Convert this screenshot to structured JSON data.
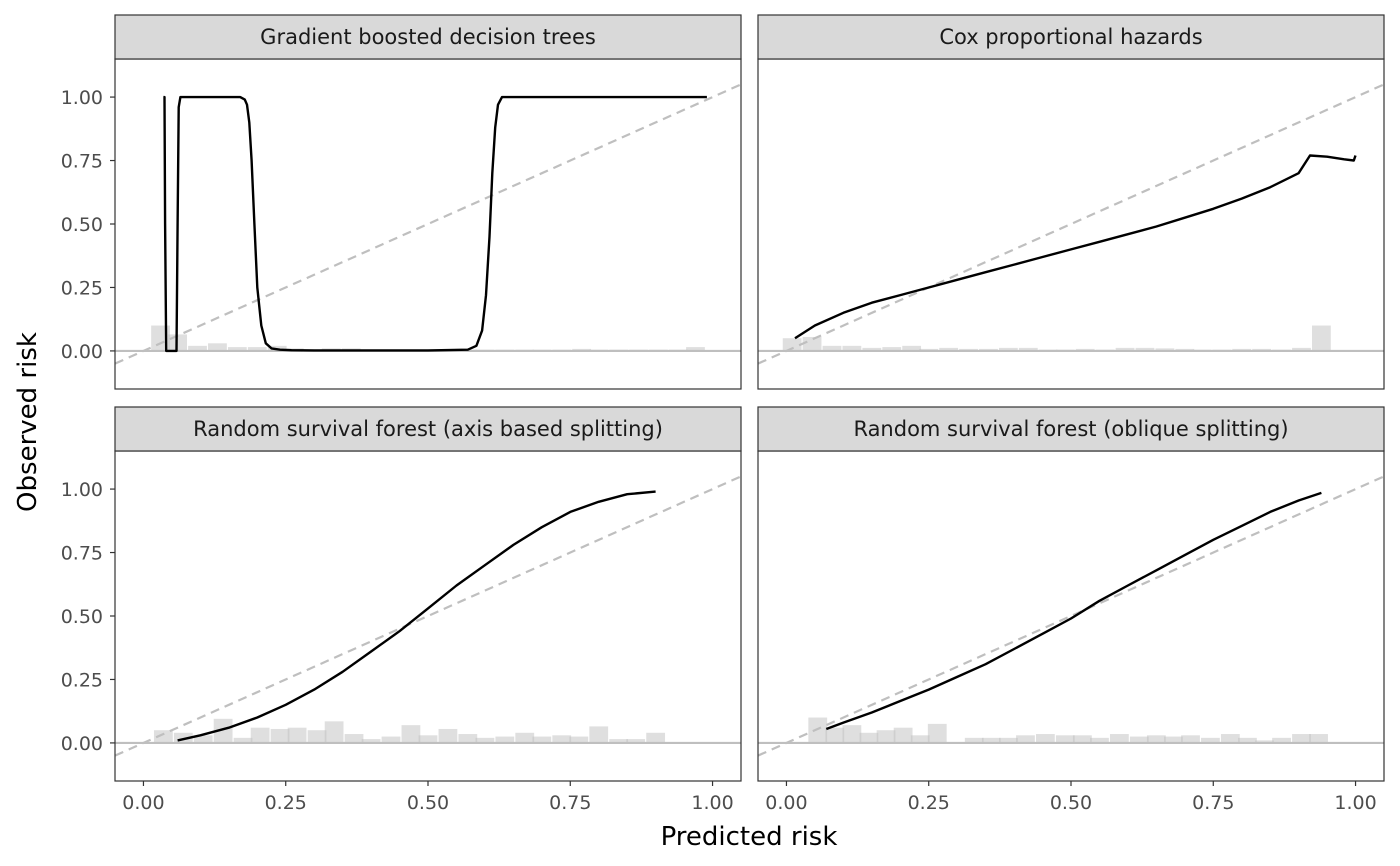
{
  "chart_data": {
    "type": "line",
    "xlabel": "Predicted risk",
    "ylabel": "Observed risk",
    "xlim": [
      -0.05,
      1.05
    ],
    "ylim": [
      -0.15,
      1.15
    ],
    "x_ticks": [
      "0.00",
      "0.25",
      "0.50",
      "0.75",
      "1.00"
    ],
    "y_ticks": [
      "0.00",
      "0.25",
      "0.50",
      "0.75",
      "1.00"
    ],
    "reference_line": "y = x (dashed)",
    "histogram_bin_width": 0.033,
    "colors": {
      "calibration_line": "#000000",
      "reference_line": "#bfbfbf",
      "histogram": "#d9d9d9",
      "strip": "#d9d9d9"
    },
    "panels": [
      {
        "title": "Gradient boosted decision trees",
        "calibration": {
          "x": [
            0.035,
            0.037,
            0.038,
            0.04,
            0.058,
            0.06,
            0.062,
            0.065,
            0.08,
            0.17,
            0.178,
            0.182,
            0.186,
            0.19,
            0.195,
            0.2,
            0.207,
            0.215,
            0.225,
            0.24,
            0.26,
            0.3,
            0.4,
            0.5,
            0.57,
            0.585,
            0.595,
            0.602,
            0.608,
            0.613,
            0.618,
            0.623,
            0.63,
            0.64,
            0.7,
            0.8,
            0.9,
            0.99
          ],
          "y": [
            1.0,
            1.0,
            0.5,
            0.0,
            0.0,
            0.5,
            0.96,
            1.0,
            1.0,
            1.0,
            0.99,
            0.97,
            0.9,
            0.75,
            0.5,
            0.25,
            0.1,
            0.03,
            0.01,
            0.005,
            0.003,
            0.002,
            0.002,
            0.002,
            0.005,
            0.02,
            0.08,
            0.22,
            0.45,
            0.7,
            0.88,
            0.97,
            1.0,
            1.0,
            1.0,
            1.0,
            1.0,
            1.0
          ]
        },
        "histogram": {
          "x": [
            0.03,
            0.06,
            0.095,
            0.13,
            0.165,
            0.2,
            0.235,
            0.265,
            0.3,
            0.33,
            0.365,
            0.4,
            0.435,
            0.47,
            0.5,
            0.535,
            0.57,
            0.6,
            0.635,
            0.67,
            0.7,
            0.735,
            0.77,
            0.8,
            0.835,
            0.87,
            0.905,
            0.94,
            0.97
          ],
          "y": [
            0.1,
            0.065,
            0.02,
            0.03,
            0.015,
            0.015,
            0.02,
            0.01,
            0.005,
            0.01,
            0.01,
            0.005,
            0.005,
            0.005,
            0.005,
            0.005,
            0.005,
            0.005,
            0.005,
            0.005,
            0.005,
            0.005,
            0.008,
            0.005,
            0.005,
            0.005,
            0.005,
            0.005,
            0.015
          ]
        }
      },
      {
        "title": "Cox proportional hazards",
        "calibration": {
          "x": [
            0.015,
            0.05,
            0.1,
            0.15,
            0.2,
            0.25,
            0.3,
            0.35,
            0.4,
            0.45,
            0.5,
            0.55,
            0.6,
            0.65,
            0.7,
            0.75,
            0.8,
            0.85,
            0.9,
            0.92,
            0.95,
            0.98,
            0.997,
            1.0
          ],
          "y": [
            0.05,
            0.1,
            0.15,
            0.19,
            0.22,
            0.25,
            0.28,
            0.31,
            0.34,
            0.37,
            0.4,
            0.43,
            0.46,
            0.49,
            0.525,
            0.56,
            0.6,
            0.645,
            0.7,
            0.77,
            0.765,
            0.755,
            0.75,
            0.77
          ]
        },
        "histogram": {
          "x": [
            0.01,
            0.045,
            0.08,
            0.115,
            0.15,
            0.185,
            0.22,
            0.25,
            0.285,
            0.32,
            0.355,
            0.39,
            0.425,
            0.46,
            0.49,
            0.525,
            0.56,
            0.595,
            0.63,
            0.665,
            0.7,
            0.73,
            0.765,
            0.8,
            0.835,
            0.87,
            0.905,
            0.94
          ],
          "y": [
            0.05,
            0.055,
            0.02,
            0.02,
            0.012,
            0.015,
            0.02,
            0.008,
            0.012,
            0.008,
            0.008,
            0.012,
            0.012,
            0.005,
            0.005,
            0.008,
            0.005,
            0.012,
            0.012,
            0.01,
            0.008,
            0.005,
            0.005,
            0.008,
            0.008,
            0.005,
            0.012,
            0.1
          ]
        }
      },
      {
        "title": "Random survival forest (axis based splitting)",
        "calibration": {
          "x": [
            0.06,
            0.1,
            0.15,
            0.2,
            0.25,
            0.3,
            0.35,
            0.4,
            0.45,
            0.5,
            0.55,
            0.6,
            0.65,
            0.7,
            0.75,
            0.8,
            0.85,
            0.9
          ],
          "y": [
            0.01,
            0.03,
            0.06,
            0.1,
            0.15,
            0.21,
            0.28,
            0.36,
            0.44,
            0.53,
            0.62,
            0.7,
            0.78,
            0.85,
            0.91,
            0.95,
            0.98,
            0.99
          ]
        },
        "histogram": {
          "x": [
            0.035,
            0.07,
            0.105,
            0.14,
            0.175,
            0.205,
            0.24,
            0.27,
            0.305,
            0.335,
            0.37,
            0.4,
            0.435,
            0.47,
            0.5,
            0.535,
            0.57,
            0.6,
            0.635,
            0.67,
            0.7,
            0.735,
            0.765,
            0.8,
            0.835,
            0.865,
            0.9
          ],
          "y": [
            0.05,
            0.04,
            0.03,
            0.095,
            0.02,
            0.06,
            0.055,
            0.06,
            0.05,
            0.085,
            0.035,
            0.015,
            0.025,
            0.07,
            0.03,
            0.055,
            0.035,
            0.02,
            0.025,
            0.04,
            0.025,
            0.03,
            0.025,
            0.065,
            0.015,
            0.015,
            0.04
          ]
        }
      },
      {
        "title": "Random survival forest (oblique splitting)",
        "calibration": {
          "x": [
            0.07,
            0.1,
            0.15,
            0.2,
            0.25,
            0.3,
            0.35,
            0.4,
            0.45,
            0.5,
            0.55,
            0.6,
            0.65,
            0.7,
            0.75,
            0.8,
            0.85,
            0.9,
            0.94
          ],
          "y": [
            0.055,
            0.08,
            0.12,
            0.165,
            0.21,
            0.26,
            0.31,
            0.37,
            0.43,
            0.49,
            0.56,
            0.62,
            0.68,
            0.74,
            0.8,
            0.855,
            0.91,
            0.955,
            0.985
          ]
        },
        "histogram": {
          "x": [
            0.055,
            0.085,
            0.115,
            0.145,
            0.175,
            0.205,
            0.235,
            0.265,
            0.33,
            0.36,
            0.39,
            0.42,
            0.455,
            0.49,
            0.52,
            0.55,
            0.585,
            0.62,
            0.65,
            0.68,
            0.71,
            0.745,
            0.78,
            0.81,
            0.84,
            0.87,
            0.905,
            0.935
          ],
          "y": [
            0.1,
            0.06,
            0.07,
            0.04,
            0.05,
            0.06,
            0.03,
            0.075,
            0.02,
            0.02,
            0.02,
            0.03,
            0.035,
            0.03,
            0.03,
            0.02,
            0.035,
            0.025,
            0.03,
            0.025,
            0.03,
            0.02,
            0.035,
            0.02,
            0.01,
            0.02,
            0.035,
            0.035
          ]
        }
      }
    ]
  }
}
